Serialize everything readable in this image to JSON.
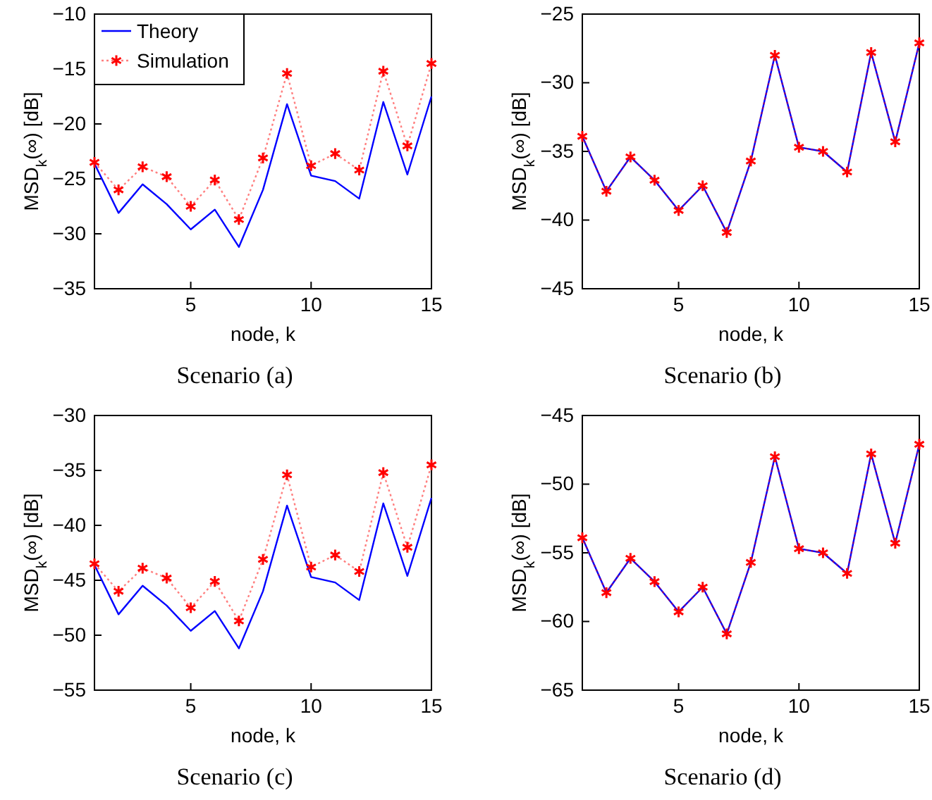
{
  "chart_data": [
    {
      "type": "line",
      "annotations": [
        "Scenario (a)"
      ],
      "xlabel": "node, k",
      "ylabel": "MSD$_{k}$(∞) [dB]",
      "x": [
        1,
        2,
        3,
        4,
        5,
        6,
        7,
        8,
        9,
        10,
        11,
        12,
        13,
        14,
        15
      ],
      "xlim": [
        1,
        15
      ],
      "xticks": [
        5,
        10,
        15
      ],
      "ylim": [
        -35,
        -10
      ],
      "yticks": [
        -35,
        -30,
        -25,
        -20,
        -15,
        -10
      ],
      "grid": false,
      "legend": "top left",
      "series": [
        {
          "name": "Theory",
          "color": "#0000ff",
          "line_style": "solid",
          "marker": "none",
          "values": [
            -23.6,
            -28.1,
            -25.5,
            -27.3,
            -29.6,
            -27.8,
            -31.2,
            -26,
            -18.2,
            -24.7,
            -25.2,
            -26.8,
            -18,
            -24.6,
            -17.5
          ]
        },
        {
          "name": "Simulation",
          "color": "#ff0000",
          "line_style": "dotted",
          "marker": "cross",
          "values": [
            -23.5,
            -26,
            -23.9,
            -24.8,
            -27.5,
            -25.1,
            -28.7,
            -23.1,
            -15.4,
            -23.8,
            -22.7,
            -24.2,
            -15.2,
            -22,
            -14.5
          ]
        }
      ]
    },
    {
      "type": "line",
      "annotations": [
        "Scenario (b)"
      ],
      "xlabel": "node, k",
      "ylabel": "MSD$_{k}$(∞) [dB]",
      "x": [
        1,
        2,
        3,
        4,
        5,
        6,
        7,
        8,
        9,
        10,
        11,
        12,
        13,
        14,
        15
      ],
      "xlim": [
        1,
        15
      ],
      "xticks": [
        5,
        10,
        15
      ],
      "ylim": [
        -45,
        -25
      ],
      "yticks": [
        -45,
        -40,
        -35,
        -30,
        -25
      ],
      "grid": false,
      "series": [
        {
          "color": "#0000ff",
          "line_style": "solid",
          "marker": "none",
          "values": [
            -33.9,
            -37.9,
            -35.4,
            -37.1,
            -39.3,
            -37.5,
            -40.9,
            -35.7,
            -28,
            -34.7,
            -35,
            -36.5,
            -27.8,
            -34.3,
            -27.1
          ]
        },
        {
          "color": "#ff0000",
          "line_style": "dotted",
          "marker": "cross",
          "values": [
            -33.9,
            -37.9,
            -35.4,
            -37.1,
            -39.3,
            -37.5,
            -40.9,
            -35.7,
            -28,
            -34.7,
            -35,
            -36.5,
            -27.8,
            -34.3,
            -27.1
          ]
        }
      ]
    },
    {
      "type": "line",
      "annotations": [
        "Scenario (c)"
      ],
      "xlabel": "node, k",
      "ylabel": "MSD$_{k}$(∞) [dB]",
      "x": [
        1,
        2,
        3,
        4,
        5,
        6,
        7,
        8,
        9,
        10,
        11,
        12,
        13,
        14,
        15
      ],
      "xlim": [
        1,
        15
      ],
      "xticks": [
        5,
        10,
        15
      ],
      "ylim": [
        -55,
        -30
      ],
      "yticks": [
        -55,
        -50,
        -45,
        -40,
        -35,
        -30
      ],
      "grid": false,
      "series": [
        {
          "color": "#0000ff",
          "line_style": "solid",
          "marker": "none",
          "values": [
            -43.6,
            -48.1,
            -45.5,
            -47.3,
            -49.6,
            -47.8,
            -51.2,
            -46,
            -38.2,
            -44.7,
            -45.2,
            -46.8,
            -38,
            -44.6,
            -37.5
          ]
        },
        {
          "color": "#ff0000",
          "line_style": "dotted",
          "marker": "cross",
          "values": [
            -43.5,
            -46,
            -43.9,
            -44.8,
            -47.5,
            -45.1,
            -48.7,
            -43.1,
            -35.4,
            -43.8,
            -42.7,
            -44.2,
            -35.2,
            -42,
            -34.5
          ]
        }
      ]
    },
    {
      "type": "line",
      "annotations": [
        "Scenario (d)"
      ],
      "xlabel": "node, k",
      "ylabel": "MSD$_{k}$(∞) [dB]",
      "x": [
        1,
        2,
        3,
        4,
        5,
        6,
        7,
        8,
        9,
        10,
        11,
        12,
        13,
        14,
        15
      ],
      "xlim": [
        1,
        15
      ],
      "xticks": [
        5,
        10,
        15
      ],
      "ylim": [
        -65,
        -45
      ],
      "yticks": [
        -65,
        -60,
        -55,
        -50,
        -45
      ],
      "grid": false,
      "series": [
        {
          "color": "#0000ff",
          "line_style": "solid",
          "marker": "none",
          "values": [
            -53.9,
            -57.9,
            -55.4,
            -57.1,
            -59.3,
            -57.5,
            -60.9,
            -55.7,
            -48,
            -54.7,
            -55,
            -56.5,
            -47.8,
            -54.3,
            -47.1
          ]
        },
        {
          "color": "#ff0000",
          "line_style": "dotted",
          "marker": "cross",
          "values": [
            -53.9,
            -57.9,
            -55.4,
            -57.1,
            -59.3,
            -57.5,
            -60.9,
            -55.7,
            -48,
            -54.7,
            -55,
            -56.5,
            -47.8,
            -54.3,
            -47.1
          ]
        }
      ]
    }
  ]
}
